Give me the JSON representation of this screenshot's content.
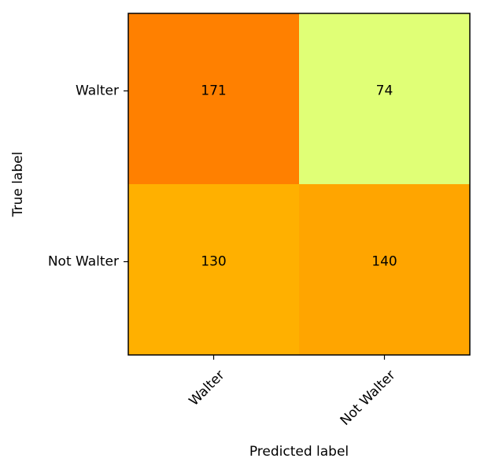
{
  "chart_data": {
    "type": "heatmap",
    "title": "",
    "xlabel": "Predicted label",
    "ylabel": "True label",
    "x_categories": [
      "Walter",
      "Not Walter"
    ],
    "y_categories": [
      "Walter",
      "Not Walter"
    ],
    "values": [
      [
        171,
        74
      ],
      [
        130,
        140
      ]
    ],
    "colormap": "Wistia",
    "cell_colors": [
      [
        "#ff8000",
        "#e0ff76"
      ],
      [
        "#ffb000",
        "#ffa500"
      ]
    ],
    "grid": false,
    "legend": "none",
    "x_tick_rotation": 45
  }
}
